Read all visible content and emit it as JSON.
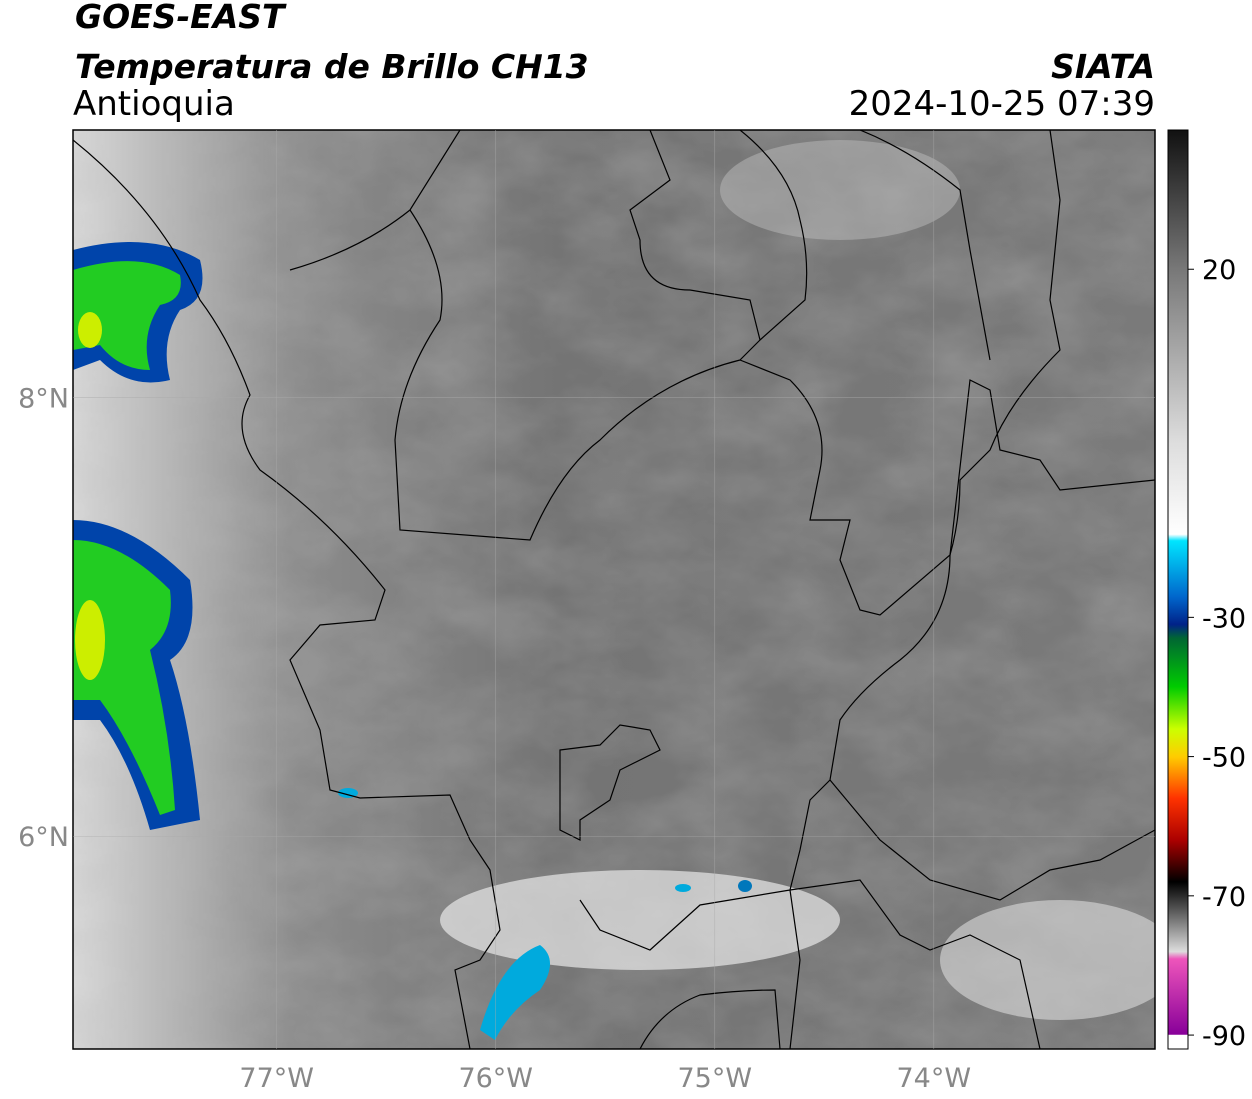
{
  "header": {
    "title": "GOES-EAST",
    "subtitle": "Temperatura de Brillo CH13",
    "source": "SIATA",
    "region": "Antioquia",
    "timestamp": "2024-10-25 07:39"
  },
  "map": {
    "lonlim": [
      -77.93,
      -72.99
    ],
    "latlim": [
      5.03,
      9.22
    ],
    "lat_ticks": [
      {
        "value": 8,
        "label": "8°N"
      },
      {
        "value": 6,
        "label": "6°N"
      }
    ],
    "lon_ticks": [
      {
        "value": -77,
        "label": "77°W"
      },
      {
        "value": -76,
        "label": "76°W"
      },
      {
        "value": -75,
        "label": "75°W"
      },
      {
        "value": -74,
        "label": "74°W"
      }
    ]
  },
  "colorbar": {
    "lim": [
      -92,
      40
    ],
    "ticks": [
      20,
      -30,
      -50,
      -70,
      -90
    ]
  }
}
